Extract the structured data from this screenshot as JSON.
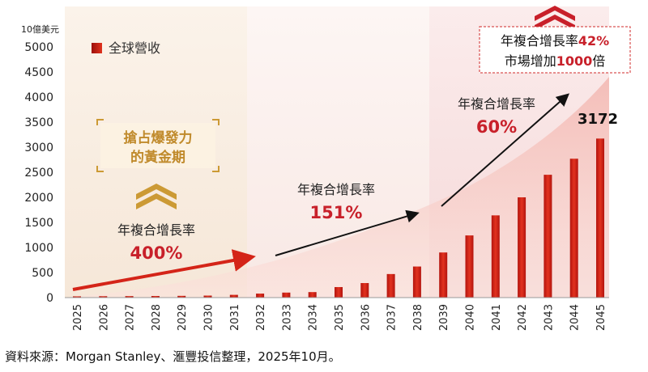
{
  "chart_data": {
    "type": "bar",
    "unit_label": "10億美元",
    "legend": "全球營收",
    "categories": [
      "2025",
      "2026",
      "2027",
      "2028",
      "2029",
      "2030",
      "2031",
      "2032",
      "2033",
      "2034",
      "2035",
      "2036",
      "2037",
      "2038",
      "2039",
      "2040",
      "2041",
      "2042",
      "2043",
      "2044",
      "2045"
    ],
    "values": [
      25,
      28,
      30,
      32,
      35,
      40,
      55,
      80,
      100,
      110,
      210,
      290,
      470,
      620,
      900,
      1240,
      1640,
      2000,
      2450,
      2770,
      3172
    ],
    "ylim": [
      0,
      5000
    ],
    "yticks": [
      "5000",
      "4500",
      "4000",
      "3500",
      "3000",
      "2500",
      "2000",
      "1500",
      "1000",
      "500",
      "0"
    ],
    "grid": false,
    "legend_position": "top-left",
    "bar_color": "#d42418",
    "accent_color": "#c8202a",
    "gold_color": "#cc9a35",
    "annotations": {
      "golden_period_line1": "搶占爆發力",
      "golden_period_line2": "的黃金期",
      "phase1_label": "年複合增長率",
      "phase1_value": "400%",
      "phase2_label": "年複合增長率",
      "phase2_value": "151%",
      "phase3_label": "年複合增長率",
      "phase3_value": "60%",
      "overall_line1_prefix": "年複合增長率",
      "overall_line1_value": "42%",
      "overall_line2_prefix": "市場增加",
      "overall_line2_value": "1000",
      "overall_line2_suffix": "倍",
      "peak_value": "3172"
    }
  },
  "footer": {
    "source": "資料來源：Morgan Stanley、滙豐投信整理，2025年10月。"
  }
}
